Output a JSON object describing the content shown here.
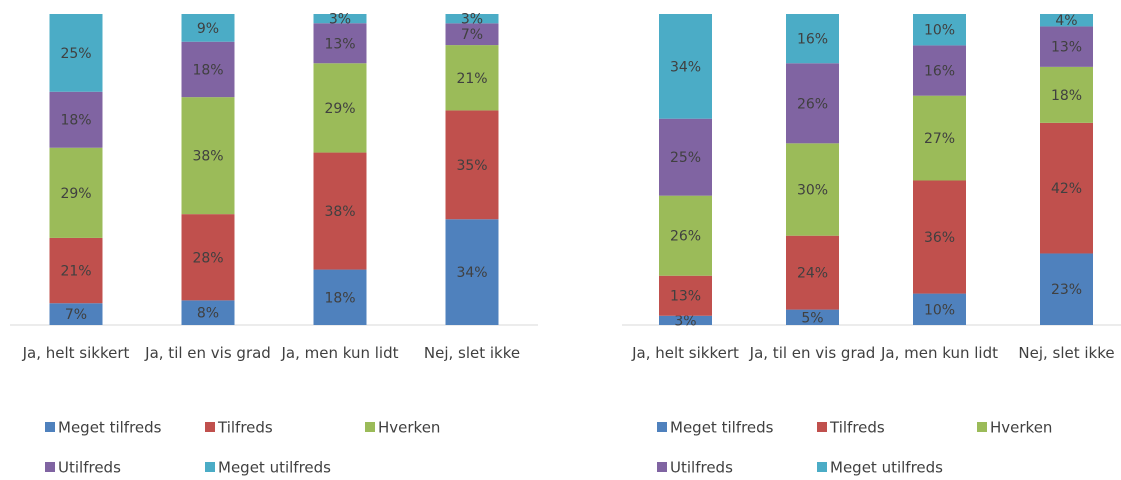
{
  "chart_data": [
    {
      "type": "stacked_bar",
      "categories": [
        "Ja, helt sikkert",
        "Ja, til en vis grad",
        "Ja, men kun lidt",
        "Nej, slet ikke"
      ],
      "series": [
        {
          "name": "Meget tilfreds",
          "color": "#4f81bd",
          "values": [
            7,
            8,
            18,
            34
          ],
          "value_labels": [
            "7%",
            "8%",
            "18%",
            "34%"
          ]
        },
        {
          "name": "Tilfreds",
          "color": "#c0504d",
          "values": [
            21,
            28,
            38,
            35
          ],
          "value_labels": [
            "21%",
            "28%",
            "38%",
            "35%"
          ]
        },
        {
          "name": "Hverken",
          "color": "#9bbb59",
          "values": [
            29,
            38,
            29,
            21
          ],
          "value_labels": [
            "29%",
            "38%",
            "29%",
            "21%"
          ]
        },
        {
          "name": "Utilfreds",
          "color": "#8064a2",
          "values": [
            18,
            18,
            13,
            7
          ],
          "value_labels": [
            "18%",
            "18%",
            "13%",
            "7%"
          ]
        },
        {
          "name": "Meget utilfreds",
          "color": "#4bacc6",
          "values": [
            25,
            9,
            3,
            3
          ],
          "value_labels": [
            "25%",
            "9%",
            "3%",
            "3%"
          ]
        }
      ]
    },
    {
      "type": "stacked_bar",
      "categories": [
        "Ja, helt sikkert",
        "Ja, til en vis grad",
        "Ja, men kun lidt",
        "Nej, slet ikke"
      ],
      "series": [
        {
          "name": "Meget tilfreds",
          "color": "#4f81bd",
          "values": [
            3,
            5,
            10,
            23
          ],
          "value_labels": [
            "3%",
            "5%",
            "10%",
            "23%"
          ]
        },
        {
          "name": "Tilfreds",
          "color": "#c0504d",
          "values": [
            13,
            24,
            36,
            42
          ],
          "value_labels": [
            "13%",
            "24%",
            "36%",
            "42%"
          ]
        },
        {
          "name": "Hverken",
          "color": "#9bbb59",
          "values": [
            26,
            30,
            27,
            18
          ],
          "value_labels": [
            "26%",
            "30%",
            "27%",
            "18%"
          ]
        },
        {
          "name": "Utilfreds",
          "color": "#8064a2",
          "values": [
            25,
            26,
            16,
            13
          ],
          "value_labels": [
            "25%",
            "26%",
            "16%",
            "13%"
          ]
        },
        {
          "name": "Meget utilfreds",
          "color": "#4bacc6",
          "values": [
            34,
            16,
            10,
            4
          ],
          "value_labels": [
            "34%",
            "16%",
            "10%",
            "4%"
          ]
        }
      ]
    }
  ]
}
